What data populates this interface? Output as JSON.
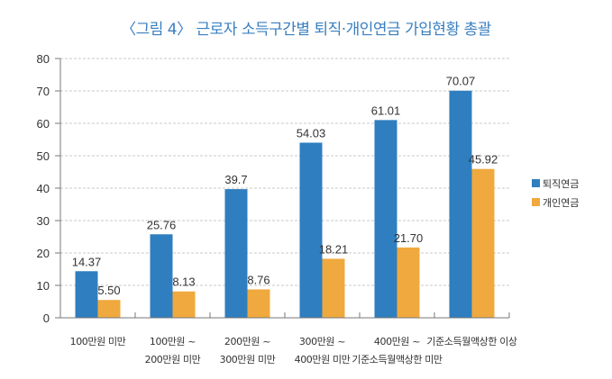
{
  "chart_data": {
    "type": "bar",
    "title": "〈그림 4〉 근로자 소득구간별 퇴직·개인연금 가입현황 총괄",
    "xlabel": "",
    "ylabel": "",
    "ylim": [
      0,
      80
    ],
    "yticks": [
      0,
      10,
      20,
      30,
      40,
      50,
      60,
      70,
      80
    ],
    "grid": true,
    "legend_position": "right",
    "categories": [
      [
        "100만원 미만"
      ],
      [
        "100만원 ~",
        "200만원 미만"
      ],
      [
        "200만원 ~",
        "300만원 미만"
      ],
      [
        "300만원 ~",
        "400만원 미만"
      ],
      [
        "400만원 ~",
        "기준소득월액상한 미만"
      ],
      [
        "기준소득월액상한 이상"
      ]
    ],
    "series": [
      {
        "name": "퇴직연금",
        "color": "#2f7ebf",
        "values": [
          14.37,
          25.76,
          39.7,
          54.03,
          61.01,
          70.07
        ],
        "labels": [
          "14.37",
          "25.76",
          "39.7",
          "54.03",
          "61.01",
          "70.07"
        ]
      },
      {
        "name": "개인연금",
        "color": "#f0a93e",
        "values": [
          5.5,
          8.13,
          8.76,
          18.21,
          21.7,
          45.92
        ],
        "labels": [
          "5.50",
          "8.13",
          "8.76",
          "18.21",
          "21.70",
          "45.92"
        ]
      }
    ]
  }
}
